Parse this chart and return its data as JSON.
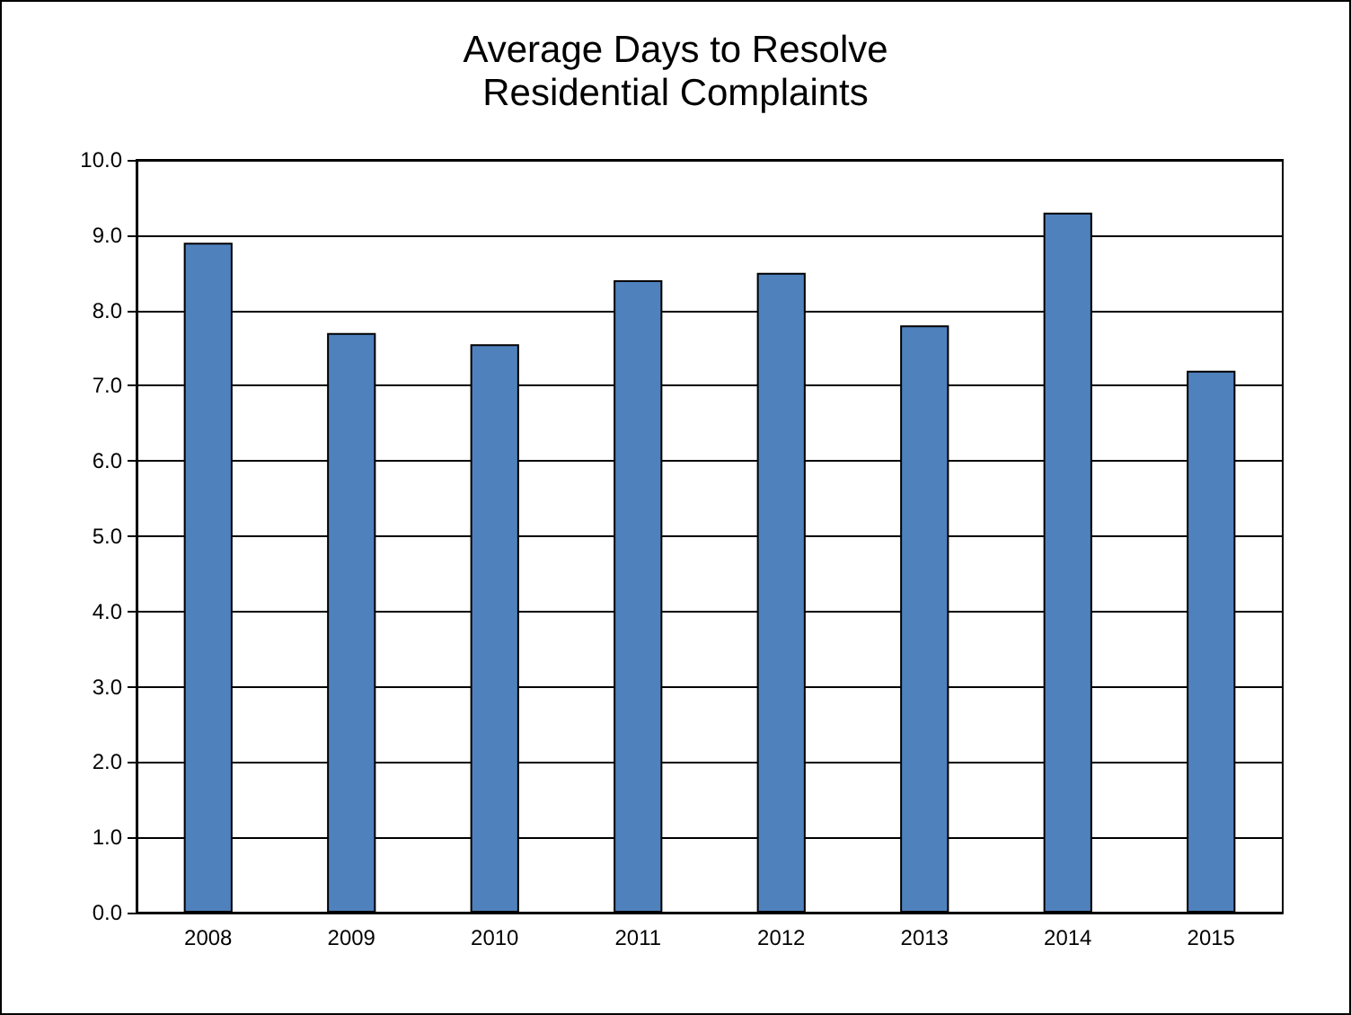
{
  "chart_data": {
    "type": "bar",
    "title": "Average Days to Resolve\nResidential Complaints",
    "categories": [
      "2008",
      "2009",
      "2010",
      "2011",
      "2012",
      "2013",
      "2014",
      "2015"
    ],
    "values": [
      8.9,
      7.7,
      7.55,
      8.4,
      8.5,
      7.8,
      9.3,
      7.2
    ],
    "color": "#4f81bd",
    "ylim": [
      0,
      10
    ],
    "yticks": [
      {
        "value": 0,
        "label": "0.0"
      },
      {
        "value": 1,
        "label": "1.0"
      },
      {
        "value": 2,
        "label": "2.0"
      },
      {
        "value": 3,
        "label": "3.0"
      },
      {
        "value": 4,
        "label": "4.0"
      },
      {
        "value": 5,
        "label": "5.0"
      },
      {
        "value": 6,
        "label": "6.0"
      },
      {
        "value": 7,
        "label": "7.0"
      },
      {
        "value": 8,
        "label": "8.0"
      },
      {
        "value": 9,
        "label": "9.0"
      },
      {
        "value": 10,
        "label": "10.0"
      }
    ],
    "grid": true
  }
}
